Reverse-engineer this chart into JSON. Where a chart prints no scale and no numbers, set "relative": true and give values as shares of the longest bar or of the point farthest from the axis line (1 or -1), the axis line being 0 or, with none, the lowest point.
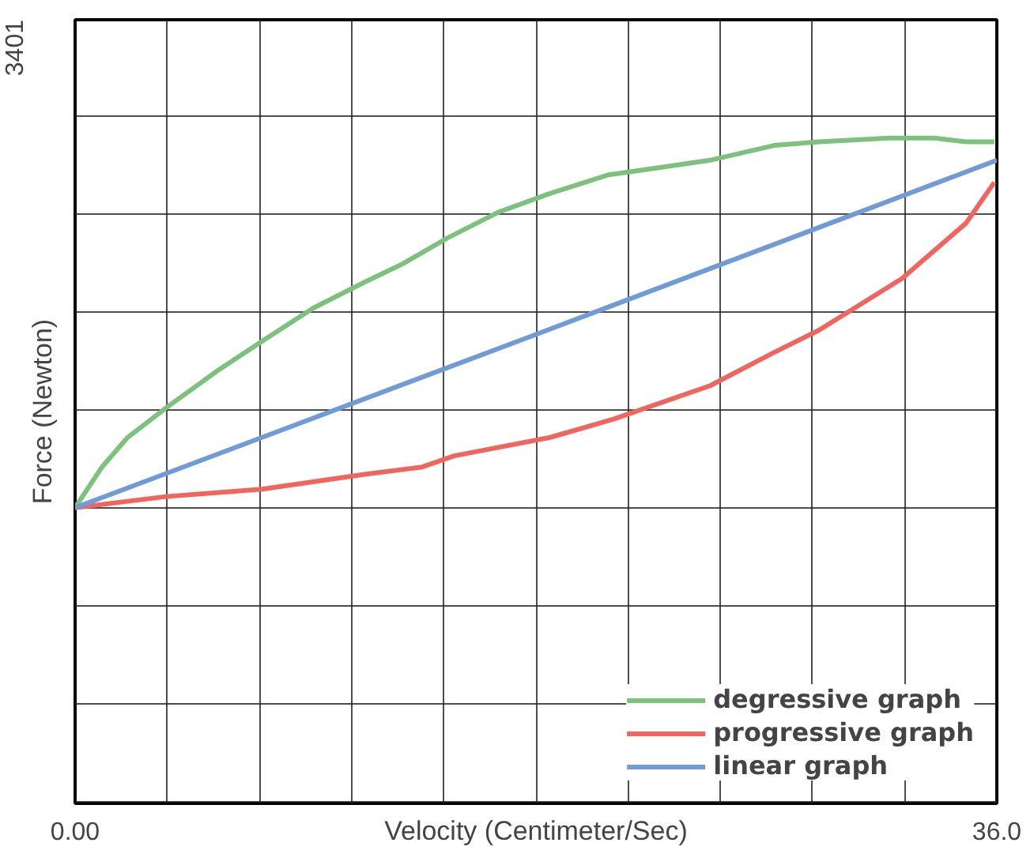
{
  "chart_data": {
    "type": "line",
    "relative": true,
    "xlabel": "Velocity (Centimeter/Sec)",
    "ylabel": "Force (Newton)",
    "annotations": [
      "3401"
    ],
    "xlim": [
      0,
      36
    ],
    "xticks": [
      {
        "value": 0,
        "label": "0.00"
      },
      {
        "value": 3.6,
        "label": null
      },
      {
        "value": 7.2,
        "label": null
      },
      {
        "value": 10.8,
        "label": null
      },
      {
        "value": 14.4,
        "label": null
      },
      {
        "value": 18,
        "label": null
      },
      {
        "value": 21.6,
        "label": null
      },
      {
        "value": 25.2,
        "label": null
      },
      {
        "value": 28.8,
        "label": null
      },
      {
        "value": 32.4,
        "label": null
      },
      {
        "value": 36,
        "label": "36.0"
      }
    ],
    "grid": true,
    "legend": "bottom right",
    "marker": "none",
    "line_style": "solid",
    "series": [
      {
        "name": "degressive graph",
        "color": "#7cc17c",
        "x": [
          0,
          1.05,
          2.05,
          3.55,
          5.55,
          7.3,
          9.3,
          11.3,
          12.8,
          14.55,
          16.55,
          18.55,
          20.8,
          22.8,
          24.8,
          27.3,
          29.05,
          31.8,
          33.55,
          34.8,
          35.9
        ],
        "values": [
          0,
          0.11,
          0.19,
          0.27,
          0.37,
          0.45,
          0.54,
          0.61,
          0.66,
          0.73,
          0.8,
          0.85,
          0.9,
          0.92,
          0.94,
          0.98,
          0.99,
          1.0,
          1.0,
          0.99,
          0.99
        ]
      },
      {
        "name": "progressive graph",
        "color": "#f0665f",
        "x": [
          0,
          3.55,
          7.3,
          11.3,
          13.55,
          14.8,
          18.55,
          21.05,
          24.8,
          27.3,
          29.05,
          32.3,
          34.8,
          35.9
        ],
        "values": [
          0,
          0.03,
          0.05,
          0.09,
          0.11,
          0.14,
          0.19,
          0.24,
          0.33,
          0.42,
          0.48,
          0.62,
          0.77,
          0.88
        ]
      },
      {
        "name": "linear graph",
        "color": "#6f9bd6",
        "x": [
          0,
          18.05,
          36
        ],
        "values": [
          0,
          0.47,
          0.94
        ]
      }
    ]
  }
}
